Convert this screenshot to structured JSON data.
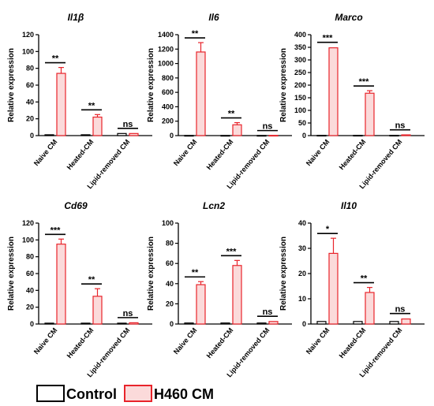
{
  "chart_data": [
    {
      "type": "bar",
      "title": "Il1β",
      "ylabel": "Relative expression",
      "categories": [
        "Naive CM",
        "Heated-CM",
        "Lipid-removed CM"
      ],
      "ylim": [
        0,
        120
      ],
      "yticks": [
        0,
        20,
        40,
        60,
        80,
        100,
        120
      ],
      "series": [
        {
          "name": "Control",
          "values": [
            1,
            1,
            2.5
          ],
          "errors": [
            0.3,
            0.3,
            0.5
          ]
        },
        {
          "name": "H460 CM",
          "values": [
            74,
            22,
            2.5
          ],
          "errors": [
            7,
            3,
            0.5
          ]
        }
      ],
      "significance": [
        "**",
        "**",
        "ns"
      ]
    },
    {
      "type": "bar",
      "title": "Il6",
      "ylabel": "Relative expression",
      "categories": [
        "Naive CM",
        "Heated-CM",
        "Lipid-removed CM"
      ],
      "ylim": [
        0,
        1400
      ],
      "yticks": [
        0,
        200,
        400,
        600,
        800,
        1000,
        1200,
        1400
      ],
      "series": [
        {
          "name": "Control",
          "values": [
            2,
            2,
            2
          ],
          "errors": [
            1,
            1,
            1
          ]
        },
        {
          "name": "H460 CM",
          "values": [
            1160,
            150,
            3
          ],
          "errors": [
            130,
            30,
            1
          ]
        }
      ],
      "significance": [
        "**",
        "**",
        "ns"
      ]
    },
    {
      "type": "bar",
      "title": "Marco",
      "ylabel": "Relative expression",
      "categories": [
        "Naive CM",
        "Heated-CM",
        "Lipid-removed CM"
      ],
      "ylim": [
        0,
        400
      ],
      "yticks": [
        0,
        50,
        100,
        150,
        200,
        250,
        300,
        350,
        400
      ],
      "series": [
        {
          "name": "Control",
          "values": [
            1,
            1,
            1
          ],
          "errors": [
            0.3,
            0.3,
            0.3
          ]
        },
        {
          "name": "H460 CM",
          "values": [
            348,
            168,
            3
          ],
          "errors": [
            3,
            10,
            1
          ]
        }
      ],
      "significance": [
        "***",
        "***",
        "ns"
      ]
    },
    {
      "type": "bar",
      "title": "Cd69",
      "ylabel": "Relative expression",
      "categories": [
        "Naive CM",
        "Heated-CM",
        "Lipid-removed CM"
      ],
      "ylim": [
        0,
        120
      ],
      "yticks": [
        0,
        20,
        40,
        60,
        80,
        100,
        120
      ],
      "series": [
        {
          "name": "Control",
          "values": [
            1,
            1,
            1
          ],
          "errors": [
            0.3,
            0.3,
            0.3
          ]
        },
        {
          "name": "H460 CM",
          "values": [
            95,
            33,
            1.5
          ],
          "errors": [
            6,
            9,
            0.5
          ]
        }
      ],
      "significance": [
        "***",
        "**",
        "ns"
      ]
    },
    {
      "type": "bar",
      "title": "Lcn2",
      "ylabel": "Relative expression",
      "categories": [
        "Naive CM",
        "Heated-CM",
        "Lipid-removed CM"
      ],
      "ylim": [
        0,
        100
      ],
      "yticks": [
        0,
        20,
        40,
        60,
        80,
        100
      ],
      "series": [
        {
          "name": "Control",
          "values": [
            1,
            1,
            1
          ],
          "errors": [
            0.3,
            0.3,
            0.3
          ]
        },
        {
          "name": "H460 CM",
          "values": [
            39,
            58,
            2.5
          ],
          "errors": [
            3,
            5,
            0.5
          ]
        }
      ],
      "significance": [
        "**",
        "***",
        "ns"
      ]
    },
    {
      "type": "bar",
      "title": "Il10",
      "ylabel": "Relative expression",
      "categories": [
        "Naive CM",
        "Heated-CM",
        "Lipid-removed CM"
      ],
      "ylim": [
        0,
        40
      ],
      "yticks": [
        0,
        10,
        20,
        30,
        40
      ],
      "series": [
        {
          "name": "Control",
          "values": [
            1,
            1,
            1
          ],
          "errors": [
            0.2,
            0.2,
            0.2
          ]
        },
        {
          "name": "H460 CM",
          "values": [
            28,
            12.5,
            2
          ],
          "errors": [
            6,
            2,
            0.3
          ]
        }
      ],
      "significance": [
        "*",
        "**",
        "ns"
      ]
    }
  ],
  "legend": {
    "control_label": "Control",
    "treated_label": "H460 CM"
  },
  "colors": {
    "control_fill": "#ffffff",
    "control_stroke": "#000000",
    "treated_fill": "#fbdada",
    "treated_stroke": "#e8242b"
  }
}
